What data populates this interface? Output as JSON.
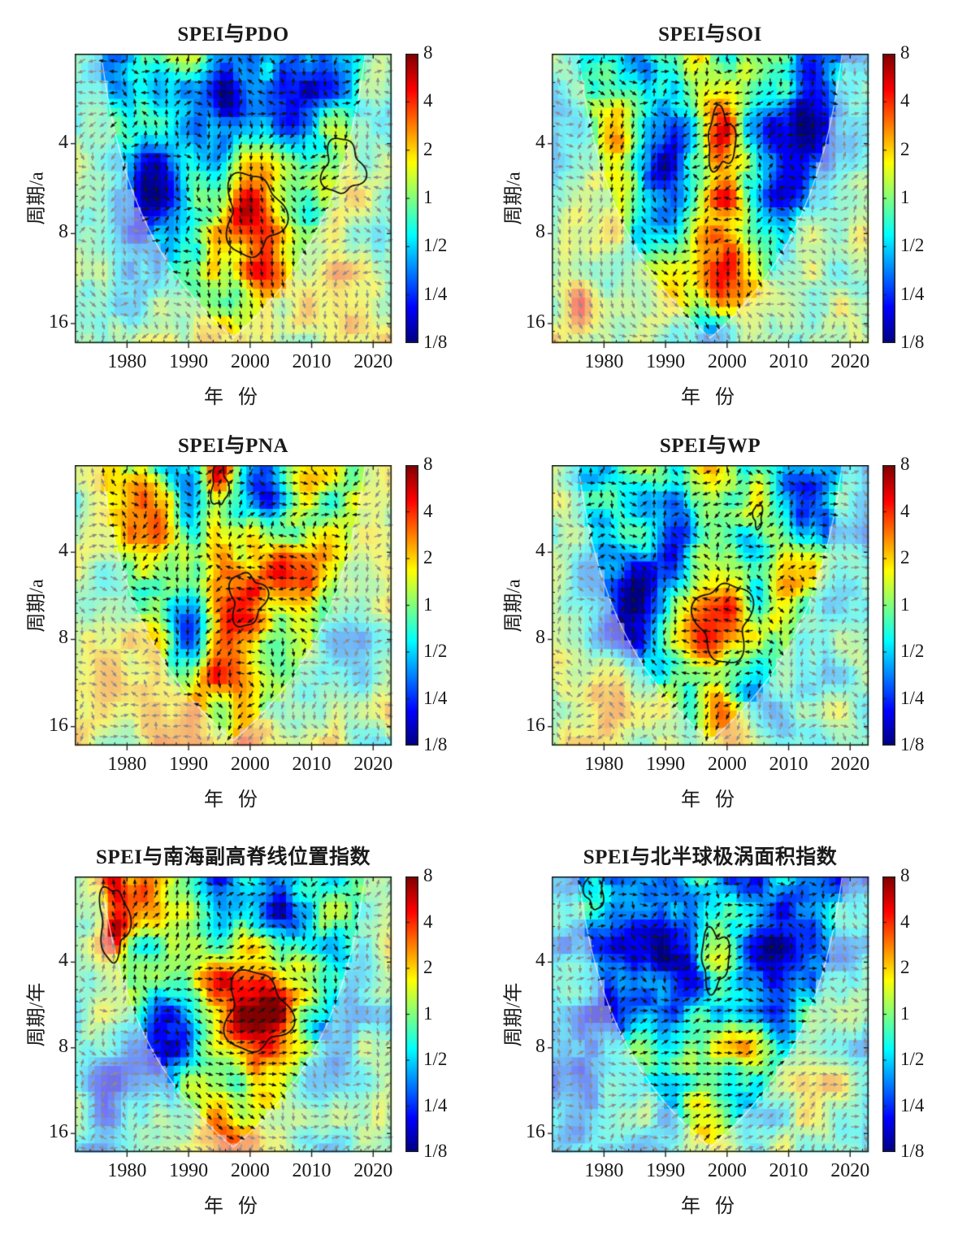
{
  "figure_type": "wavelet-coherence-grid",
  "colorbar": {
    "tick_labels": [
      "8",
      "4",
      "2",
      "1",
      "1/2",
      "1/4",
      "1/8"
    ],
    "tick_values": [
      8,
      4,
      2,
      1,
      0.5,
      0.25,
      0.125
    ]
  },
  "chart_data": [
    {
      "type": "heatmap",
      "title": "SPEI与PDO",
      "xlabel": "年 份",
      "ylabel": "周期/a",
      "x_ticks": [
        1980,
        1990,
        2000,
        2010,
        2020
      ],
      "y_ticks": [
        4,
        8,
        16
      ],
      "x_range": [
        1971.5,
        2023
      ],
      "period_range": [
        2,
        18.6
      ],
      "scale": "log2",
      "colorbar_ticks": [
        "8",
        "4",
        "2",
        "1",
        "1/2",
        "1/4",
        "1/8"
      ],
      "seed": 11,
      "base": -0.35,
      "hotspots": [
        {
          "t": 2000,
          "p": 6.8,
          "a": 2.7,
          "st": 4.2,
          "sp": 0.4,
          "dir": -90
        },
        {
          "t": 2001,
          "p": 13.5,
          "a": 1.8,
          "st": 4.0,
          "sp": 0.35,
          "dir": -90
        },
        {
          "t": 2014.5,
          "p": 4.7,
          "a": 1.7,
          "st": 3.0,
          "sp": 0.28,
          "dir": -135
        },
        {
          "t": 2015,
          "p": 14.5,
          "a": 1.4,
          "st": 6.0,
          "sp": 0.5,
          "dir": -90
        },
        {
          "t": 1993,
          "p": 15.5,
          "a": 1.2,
          "st": 3.0,
          "sp": 0.35,
          "dir": -90
        }
      ],
      "coldspots": [
        {
          "t": 1985,
          "p": 5.5,
          "a": -2.3,
          "st": 4.0,
          "sp": 0.5
        },
        {
          "t": 1995.5,
          "p": 3.0,
          "a": -2.0,
          "st": 2.5,
          "sp": 0.4
        },
        {
          "t": 2009,
          "p": 2.7,
          "a": -2.1,
          "st": 4.0,
          "sp": 0.45
        },
        {
          "t": 1997,
          "p": 11.8,
          "a": -1.6,
          "st": 2.2,
          "sp": 0.25
        },
        {
          "t": 1978,
          "p": 2.3,
          "a": -1.5,
          "st": 2.5,
          "sp": 0.35
        }
      ],
      "significant_regions": [
        {
          "t": 2000.5,
          "p": 6.9,
          "rt": 4.5,
          "rp": 0.45
        },
        {
          "t": 2015,
          "p": 4.8,
          "rt": 3.2,
          "rp": 0.3
        }
      ]
    },
    {
      "type": "heatmap",
      "title": "SPEI与SOI",
      "xlabel": "年 份",
      "ylabel": "周期/a",
      "x_ticks": [
        1980,
        1990,
        2000,
        2010,
        2020
      ],
      "y_ticks": [
        4,
        8,
        16
      ],
      "x_range": [
        1971.5,
        2023
      ],
      "period_range": [
        2,
        18.6
      ],
      "scale": "log2",
      "colorbar_ticks": [
        "8",
        "4",
        "2",
        "1",
        "1/2",
        "1/4",
        "1/8"
      ],
      "seed": 22,
      "base": -0.15,
      "hotspots": [
        {
          "t": 1999,
          "p": 3.9,
          "a": 2.3,
          "st": 2.3,
          "sp": 0.3,
          "dir": 180
        },
        {
          "t": 2000,
          "p": 7.5,
          "a": 1.4,
          "st": 3.0,
          "sp": 0.5,
          "dir": 170
        },
        {
          "t": 1999,
          "p": 11.5,
          "a": 2.0,
          "st": 6.0,
          "sp": 0.4,
          "dir": -90
        },
        {
          "t": 1982,
          "p": 4.2,
          "a": 1.4,
          "st": 3.0,
          "sp": 0.55,
          "dir": -135
        },
        {
          "t": 1976,
          "p": 13,
          "a": 1.2,
          "st": 4.0,
          "sp": 0.5,
          "dir": -90
        }
      ],
      "coldspots": [
        {
          "t": 1990,
          "p": 5.5,
          "a": -1.8,
          "st": 3.0,
          "sp": 0.5
        },
        {
          "t": 2008,
          "p": 5.0,
          "a": -1.9,
          "st": 3.5,
          "sp": 0.5
        },
        {
          "t": 2014.5,
          "p": 3.0,
          "a": -1.6,
          "st": 4.0,
          "sp": 0.5
        },
        {
          "t": 1997.5,
          "p": 17,
          "a": -1.6,
          "st": 3.0,
          "sp": 0.3
        },
        {
          "t": 1985,
          "p": 2.2,
          "a": -1.4,
          "st": 2.0,
          "sp": 0.3
        }
      ],
      "significant_regions": [
        {
          "t": 1999,
          "p": 3.9,
          "rt": 2.2,
          "rp": 0.32
        }
      ]
    },
    {
      "type": "heatmap",
      "title": "SPEI与PNA",
      "xlabel": "年 份",
      "ylabel": "周期/a",
      "x_ticks": [
        1980,
        1990,
        2000,
        2010,
        2020
      ],
      "y_ticks": [
        4,
        8,
        16
      ],
      "x_range": [
        1971.5,
        2023
      ],
      "period_range": [
        2,
        18.6
      ],
      "scale": "log2",
      "colorbar_ticks": [
        "8",
        "4",
        "2",
        "1",
        "1/2",
        "1/4",
        "1/8"
      ],
      "seed": 33,
      "base": 0.15,
      "hotspots": [
        {
          "t": 1995,
          "p": 2.3,
          "a": 2.1,
          "st": 1.6,
          "sp": 0.25,
          "dir": 90
        },
        {
          "t": 1999.5,
          "p": 5.8,
          "a": 2.3,
          "st": 3.0,
          "sp": 0.3,
          "dir": 180
        },
        {
          "t": 2008,
          "p": 5.0,
          "a": 1.6,
          "st": 4.0,
          "sp": 0.3,
          "dir": 180
        },
        {
          "t": 1985,
          "p": 3.3,
          "a": 1.1,
          "st": 3.0,
          "sp": 0.5,
          "dir": -160
        },
        {
          "t": 1992,
          "p": 15,
          "a": 1.1,
          "st": 10.0,
          "sp": 0.5,
          "dir": -90
        },
        {
          "t": 1996,
          "p": 9,
          "a": 0.8,
          "st": 3.0,
          "sp": 0.4,
          "dir": 180
        }
      ],
      "coldspots": [
        {
          "t": 1990,
          "p": 2.5,
          "a": -1.9,
          "st": 2.0,
          "sp": 0.35
        },
        {
          "t": 2003,
          "p": 2.4,
          "a": -1.9,
          "st": 2.5,
          "sp": 0.4
        },
        {
          "t": 1989,
          "p": 8.0,
          "a": -1.4,
          "st": 3.0,
          "sp": 0.4
        },
        {
          "t": 2003,
          "p": 9.5,
          "a": -1.6,
          "st": 3.0,
          "sp": 0.4
        },
        {
          "t": 2014,
          "p": 7.0,
          "a": -1.0,
          "st": 4.0,
          "sp": 0.6
        }
      ],
      "significant_regions": [
        {
          "t": 1995,
          "p": 2.35,
          "rt": 1.3,
          "rp": 0.24
        },
        {
          "t": 1999.5,
          "p": 5.8,
          "rt": 2.8,
          "rp": 0.3
        }
      ]
    },
    {
      "type": "heatmap",
      "title": "SPEI与WP",
      "xlabel": "年 份",
      "ylabel": "周期/a",
      "x_ticks": [
        1980,
        1990,
        2000,
        2010,
        2020
      ],
      "y_ticks": [
        4,
        8,
        16
      ],
      "x_range": [
        1971.5,
        2023
      ],
      "period_range": [
        2,
        18.6
      ],
      "scale": "log2",
      "colorbar_ticks": [
        "8",
        "4",
        "2",
        "1",
        "1/2",
        "1/4",
        "1/8"
      ],
      "seed": 44,
      "base": -0.25,
      "hotspots": [
        {
          "t": 1999.5,
          "p": 6.9,
          "a": 2.9,
          "st": 4.0,
          "sp": 0.42,
          "dir": -160
        },
        {
          "t": 2005,
          "p": 2.9,
          "a": 1.4,
          "st": 2.0,
          "sp": 0.3,
          "dir": 90
        },
        {
          "t": 1997,
          "p": 2.1,
          "a": 1.2,
          "st": 2.0,
          "sp": 0.3,
          "dir": 90
        },
        {
          "t": 1979,
          "p": 13,
          "a": 1.5,
          "st": 5.0,
          "sp": 0.45,
          "dir": 180
        },
        {
          "t": 1999,
          "p": 15.5,
          "a": 1.6,
          "st": 4.0,
          "sp": 0.4,
          "dir": -135
        },
        {
          "t": 2010,
          "p": 4.5,
          "a": 0.9,
          "st": 3.0,
          "sp": 0.4,
          "dir": 45
        }
      ],
      "coldspots": [
        {
          "t": 1985,
          "p": 6.5,
          "a": -2.3,
          "st": 4.0,
          "sp": 0.55
        },
        {
          "t": 1992,
          "p": 3.2,
          "a": -1.8,
          "st": 2.0,
          "sp": 0.4
        },
        {
          "t": 2004.5,
          "p": 4.6,
          "a": -1.6,
          "st": 2.0,
          "sp": 0.3
        },
        {
          "t": 2013,
          "p": 2.5,
          "a": -1.9,
          "st": 4.0,
          "sp": 0.4
        },
        {
          "t": 2004,
          "p": 10.5,
          "a": -1.9,
          "st": 3.0,
          "sp": 0.35
        },
        {
          "t": 1978,
          "p": 3.5,
          "a": -1.2,
          "st": 2.5,
          "sp": 0.5
        }
      ],
      "significant_regions": [
        {
          "t": 1999.5,
          "p": 6.9,
          "rt": 4.3,
          "rp": 0.45
        },
        {
          "t": 2005,
          "p": 3.0,
          "rt": 0.7,
          "rp": 0.14
        }
      ]
    },
    {
      "type": "heatmap",
      "title": "SPEI与南海副高脊线位置指数",
      "xlabel": "年 份",
      "ylabel": "周期/年",
      "x_ticks": [
        1980,
        1990,
        2000,
        2010,
        2020
      ],
      "y_ticks": [
        4,
        8,
        16
      ],
      "x_range": [
        1971.5,
        2023
      ],
      "period_range": [
        2,
        18.6
      ],
      "scale": "log2",
      "colorbar_ticks": [
        "8",
        "4",
        "2",
        "1",
        "1/2",
        "1/4",
        "1/8"
      ],
      "seed": 55,
      "base": -0.1,
      "hotspots": [
        {
          "t": 1978,
          "p": 2.8,
          "a": 2.7,
          "st": 2.0,
          "sp": 0.38,
          "dir": 90
        },
        {
          "t": 2000.5,
          "p": 6.0,
          "a": 3.0,
          "st": 4.5,
          "sp": 0.4,
          "dir": 15
        },
        {
          "t": 2000,
          "p": 9.3,
          "a": 1.4,
          "st": 4.0,
          "sp": 0.35,
          "dir": 0
        },
        {
          "t": 1990,
          "p": 3.4,
          "a": 1.2,
          "st": 4.0,
          "sp": 0.5,
          "dir": 45
        },
        {
          "t": 1997,
          "p": 15.5,
          "a": 1.6,
          "st": 5.0,
          "sp": 0.45,
          "dir": -90
        },
        {
          "t": 1983,
          "p": 2.3,
          "a": 1.3,
          "st": 2.0,
          "sp": 0.3,
          "dir": 90
        }
      ],
      "coldspots": [
        {
          "t": 1986,
          "p": 7.5,
          "a": -2.1,
          "st": 3.5,
          "sp": 0.5
        },
        {
          "t": 1997,
          "p": 10.8,
          "a": -2.0,
          "st": 2.5,
          "sp": 0.28
        },
        {
          "t": 1995,
          "p": 2.1,
          "a": -1.6,
          "st": 2.0,
          "sp": 0.3
        },
        {
          "t": 2005,
          "p": 2.6,
          "a": -1.6,
          "st": 2.5,
          "sp": 0.4
        },
        {
          "t": 2013,
          "p": 8.0,
          "a": -1.1,
          "st": 4.0,
          "sp": 0.6
        },
        {
          "t": 1978,
          "p": 12,
          "a": -1.4,
          "st": 5.0,
          "sp": 0.5
        }
      ],
      "significant_regions": [
        {
          "t": 1977.8,
          "p": 2.9,
          "rt": 2.3,
          "rp": 0.42
        },
        {
          "t": 2001,
          "p": 6.0,
          "rt": 5.0,
          "rp": 0.46
        }
      ]
    },
    {
      "type": "heatmap",
      "title": "SPEI与北半球极涡面积指数",
      "xlabel": "年 份",
      "ylabel": "周期/年",
      "x_ticks": [
        1980,
        1990,
        2000,
        2010,
        2020
      ],
      "y_ticks": [
        4,
        8,
        16
      ],
      "x_range": [
        1971.5,
        2023
      ],
      "period_range": [
        2,
        18.6
      ],
      "scale": "log2",
      "colorbar_ticks": [
        "8",
        "4",
        "2",
        "1",
        "1/2",
        "1/4",
        "1/8"
      ],
      "seed": 66,
      "base": -0.85,
      "hotspots": [
        {
          "t": 1998,
          "p": 3.9,
          "a": 2.0,
          "st": 2.5,
          "sp": 0.33,
          "dir": 90
        },
        {
          "t": 2000,
          "p": 7.7,
          "a": 1.9,
          "st": 7.0,
          "sp": 0.35,
          "dir": 0
        },
        {
          "t": 1999,
          "p": 14.5,
          "a": 2.1,
          "st": 5.0,
          "sp": 0.5,
          "dir": 30
        },
        {
          "t": 1978.5,
          "p": 2.2,
          "a": 1.1,
          "st": 1.6,
          "sp": 0.25,
          "dir": 90
        },
        {
          "t": 2015,
          "p": 13,
          "a": 1.3,
          "st": 5.0,
          "sp": 0.6,
          "dir": 30
        },
        {
          "t": 1986,
          "p": 9,
          "a": 1.0,
          "st": 3.0,
          "sp": 0.4,
          "dir": 0
        }
      ],
      "coldspots": [
        {
          "t": 1988,
          "p": 3.5,
          "a": -1.8,
          "st": 5.0,
          "sp": 0.6
        },
        {
          "t": 2007,
          "p": 4.5,
          "a": -1.7,
          "st": 4.0,
          "sp": 0.6
        },
        {
          "t": 1995,
          "p": 5.8,
          "a": -1.4,
          "st": 3.0,
          "sp": 0.4
        },
        {
          "t": 2002,
          "p": 11,
          "a": -1.5,
          "st": 3.0,
          "sp": 0.3
        },
        {
          "t": 1980,
          "p": 6.5,
          "a": -1.2,
          "st": 3.0,
          "sp": 0.5
        }
      ],
      "significant_regions": [
        {
          "t": 1978.5,
          "p": 2.2,
          "rt": 1.5,
          "rp": 0.24
        },
        {
          "t": 1998,
          "p": 3.9,
          "rt": 2.2,
          "rp": 0.34
        }
      ]
    }
  ]
}
